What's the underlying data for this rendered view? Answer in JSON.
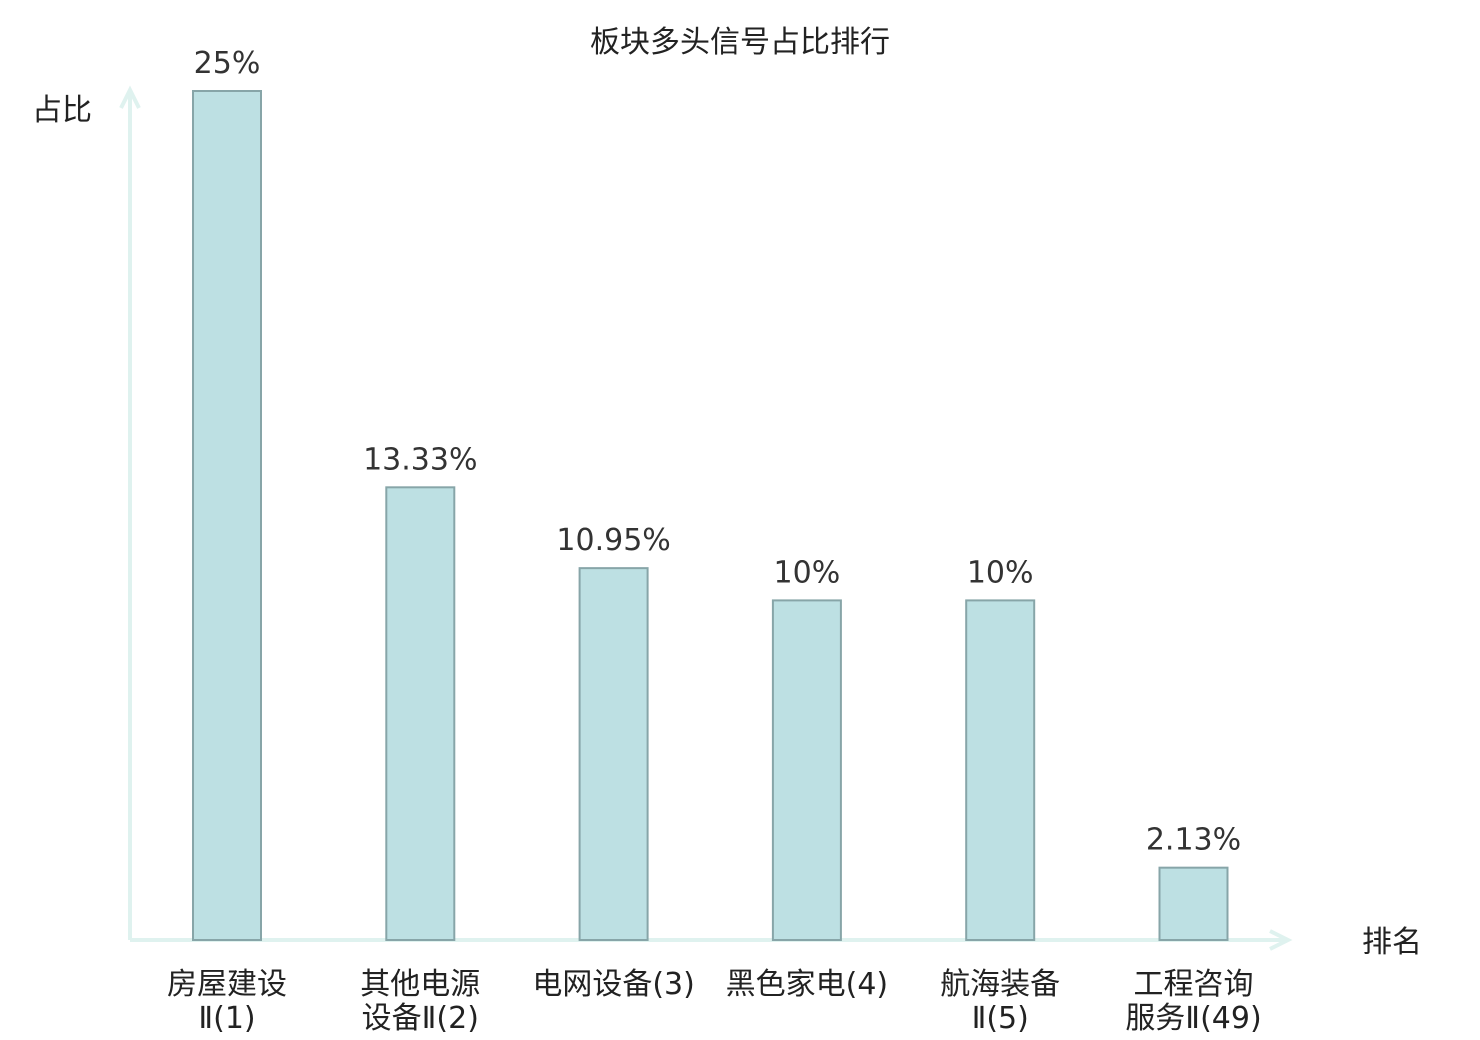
{
  "chart_data": {
    "type": "bar",
    "title": "板块多头信号占比排行",
    "ylabel": "占比",
    "xlabel": "排名",
    "ylim": [
      0,
      25
    ],
    "grid": false,
    "legend": "none",
    "categories": [
      [
        "房屋建设",
        "Ⅱ(1)"
      ],
      [
        "其他电源",
        "设备Ⅱ(2)"
      ],
      [
        "电网设备(3)"
      ],
      [
        "黑色家电(4)"
      ],
      [
        "航海装备",
        "Ⅱ(5)"
      ],
      [
        "工程咨询",
        "服务Ⅱ(49)"
      ]
    ],
    "values": [
      25,
      13.33,
      10.95,
      10,
      10,
      2.13
    ],
    "value_labels": [
      "25%",
      "13.33%",
      "10.95%",
      "10%",
      "10%",
      "2.13%"
    ],
    "highlight_index": 5,
    "colors": {
      "bar_fill": "#bde0e3",
      "bar_stroke": "#87a5a8",
      "axis": "#dff2ef",
      "highlight_text": "#e8141b",
      "text": "#222222"
    }
  }
}
